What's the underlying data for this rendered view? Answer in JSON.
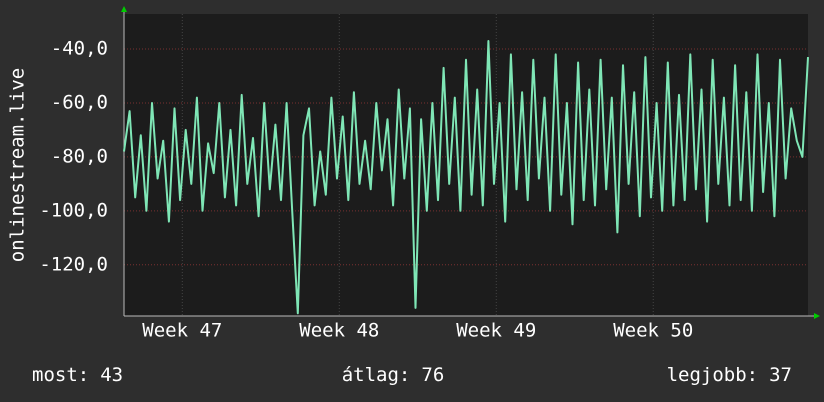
{
  "chart_data": {
    "type": "line",
    "y_label": "onlinestream.live",
    "color": "#7fe6b6",
    "grid": true,
    "xlim": [
      0,
      30.5
    ],
    "xticks": [
      {
        "value": 2.6,
        "label": "Week 47"
      },
      {
        "value": 9.6,
        "label": "Week 48"
      },
      {
        "value": 16.6,
        "label": "Week 49"
      },
      {
        "value": 23.6,
        "label": "Week 50"
      }
    ],
    "ylim": [
      -139,
      -27
    ],
    "yticks": [
      {
        "value": -40,
        "label": "-40,0"
      },
      {
        "value": -60,
        "label": "-60,0"
      },
      {
        "value": -80,
        "label": "-80,0"
      },
      {
        "value": -100,
        "label": "-100,0"
      },
      {
        "value": -120,
        "label": "-120,0"
      }
    ],
    "x": [
      0,
      0.25,
      0.5,
      0.75,
      1,
      1.25,
      1.5,
      1.75,
      2,
      2.25,
      2.5,
      2.75,
      3,
      3.25,
      3.5,
      3.75,
      4,
      4.25,
      4.5,
      4.75,
      5,
      5.25,
      5.5,
      5.75,
      6,
      6.25,
      6.5,
      6.75,
      7,
      7.25,
      7.5,
      7.75,
      8,
      8.25,
      8.5,
      8.75,
      9,
      9.25,
      9.5,
      9.75,
      10,
      10.25,
      10.5,
      10.75,
      11,
      11.25,
      11.5,
      11.75,
      12,
      12.25,
      12.5,
      12.75,
      13,
      13.25,
      13.5,
      13.75,
      14,
      14.25,
      14.5,
      14.75,
      15,
      15.25,
      15.5,
      15.75,
      16,
      16.25,
      16.5,
      16.75,
      17,
      17.25,
      17.5,
      17.75,
      18,
      18.25,
      18.5,
      18.75,
      19,
      19.25,
      19.5,
      19.75,
      20,
      20.25,
      20.5,
      20.75,
      21,
      21.25,
      21.5,
      21.75,
      22,
      22.25,
      22.5,
      22.75,
      23,
      23.25,
      23.5,
      23.75,
      24,
      24.25,
      24.5,
      24.75,
      25,
      25.25,
      25.5,
      25.75,
      26,
      26.25,
      26.5,
      26.75,
      27,
      27.25,
      27.5,
      27.75,
      28,
      28.25,
      28.5,
      28.75,
      29,
      29.25,
      29.5,
      29.75,
      30,
      30.25,
      30.5
    ],
    "values": [
      -78,
      -63,
      -95,
      -72,
      -100,
      -60,
      -88,
      -74,
      -104,
      -62,
      -96,
      -70,
      -90,
      -58,
      -100,
      -75,
      -86,
      -60,
      -95,
      -70,
      -98,
      -57,
      -90,
      -73,
      -102,
      -60,
      -92,
      -68,
      -96,
      -60,
      -100,
      -138,
      -72,
      -62,
      -98,
      -78,
      -94,
      -58,
      -88,
      -65,
      -96,
      -56,
      -90,
      -74,
      -92,
      -60,
      -85,
      -66,
      -98,
      -55,
      -88,
      -62,
      -136,
      -66,
      -100,
      -60,
      -96,
      -47,
      -90,
      -58,
      -100,
      -44,
      -94,
      -55,
      -98,
      -37,
      -90,
      -60,
      -104,
      -42,
      -92,
      -56,
      -96,
      -44,
      -88,
      -58,
      -100,
      -42,
      -94,
      -60,
      -105,
      -45,
      -96,
      -55,
      -98,
      -44,
      -92,
      -58,
      -108,
      -46,
      -90,
      -56,
      -102,
      -43,
      -95,
      -60,
      -100,
      -45,
      -98,
      -57,
      -96,
      -42,
      -92,
      -55,
      -104,
      -44,
      -90,
      -58,
      -98,
      -46,
      -96,
      -56,
      -100,
      -42,
      -93,
      -60,
      -102,
      -44,
      -88,
      -62,
      -74,
      -80,
      -43
    ],
    "footer": [
      {
        "label": "most:",
        "value": 43
      },
      {
        "label": "átlag:",
        "value": 76
      },
      {
        "label": "legjobb:",
        "value": 37
      }
    ]
  }
}
